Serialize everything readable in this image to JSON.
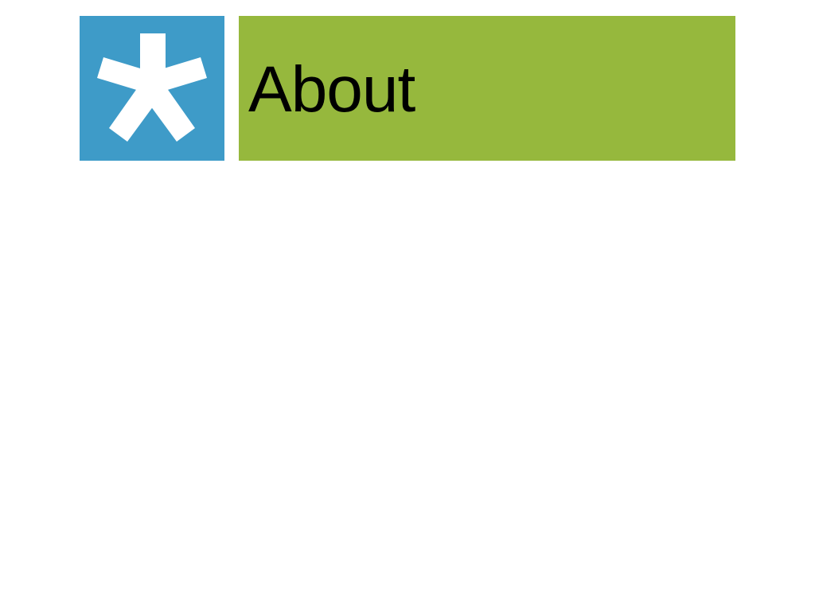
{
  "header": {
    "title": "About",
    "logo_icon": "asterisk-icon"
  },
  "colors": {
    "logo_background": "#3e9bc8",
    "banner_background": "#96b83d",
    "icon_color": "#ffffff",
    "title_color": "#000000",
    "page_background": "#ffffff"
  }
}
